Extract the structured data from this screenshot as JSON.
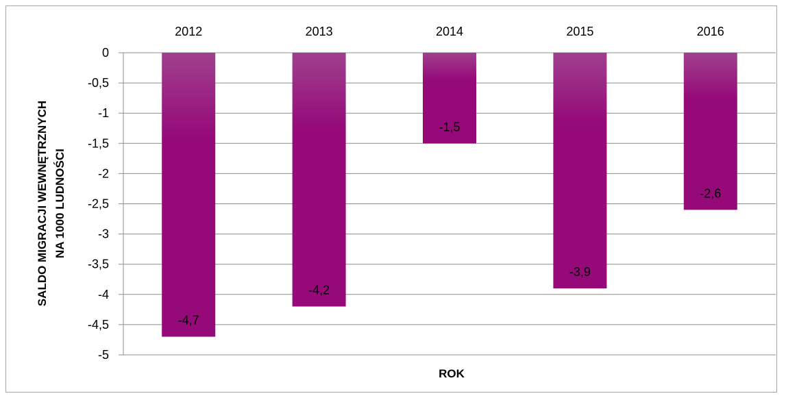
{
  "chart_data": {
    "type": "bar",
    "categories": [
      "2012",
      "2013",
      "2014",
      "2015",
      "2016"
    ],
    "values": [
      -4.7,
      -4.2,
      -1.5,
      -3.9,
      -2.6
    ],
    "data_labels": [
      "-4,7",
      "-4,2",
      "-1,5",
      "-3,9",
      "-2,6"
    ],
    "xlabel": "ROK",
    "ylabel_lines": [
      "SALDO MIGRACJI WEWNĘTRZNYCH",
      "NA 1000 LUDNOŚCI"
    ],
    "ylim": [
      -5,
      0
    ],
    "yticks": [
      0,
      -0.5,
      -1,
      -1.5,
      -2,
      -2.5,
      -3,
      -3.5,
      -4,
      -4.5,
      -5
    ],
    "ytick_labels": [
      "0",
      "-0,5",
      "-1",
      "-1,5",
      "-2",
      "-2,5",
      "-3",
      "-3,5",
      "-4",
      "-4,5",
      "-5"
    ],
    "category_axis_position": "top",
    "grid": true,
    "legend": "none",
    "colors": {
      "bar_top": "#a0408e",
      "bar_bottom": "#950a78",
      "grid": "#8c8c8c"
    }
  }
}
